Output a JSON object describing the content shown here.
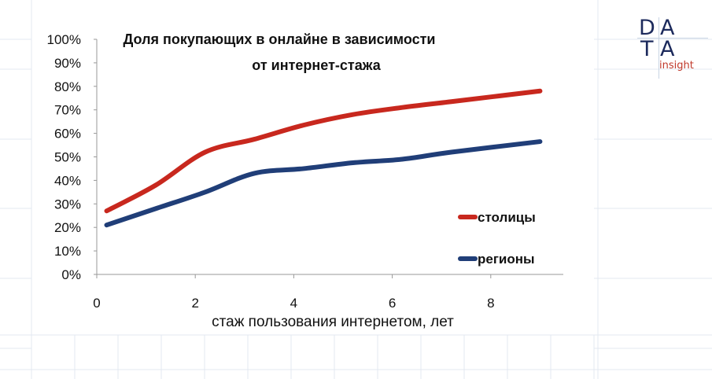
{
  "logo": {
    "text": "DATA insight",
    "line1": [
      "D",
      "A"
    ],
    "line2": [
      "T",
      "A"
    ],
    "sub": "insight"
  },
  "chart_data": {
    "type": "line",
    "title": [
      "Доля покупающих в онлайне в зависимости",
      "от интернет-стажа"
    ],
    "xlabel": "стаж пользования интернетом, лет",
    "ylabel": "",
    "xlim": [
      0,
      9.6
    ],
    "ylim": [
      0,
      100
    ],
    "xticks": [
      "0",
      "2",
      "4",
      "6",
      "8"
    ],
    "xtick_values": [
      0,
      2,
      4,
      6,
      8
    ],
    "yticks": [
      "0%",
      "10%",
      "20%",
      "30%",
      "40%",
      "50%",
      "60%",
      "70%",
      "80%",
      "90%",
      "100%"
    ],
    "grid": false,
    "legend_position": "right",
    "series": [
      {
        "name": "столицы",
        "color": "#c8281e",
        "x": [
          0.2,
          1.2,
          2.2,
          3.2,
          4.2,
          5.2,
          6.2,
          7.2,
          9.0
        ],
        "y": [
          27,
          38,
          52,
          57.5,
          63.5,
          68,
          71,
          73.5,
          78
        ]
      },
      {
        "name": "регионы",
        "color": "#203e78",
        "x": [
          0.2,
          1.2,
          2.2,
          3.2,
          4.2,
          5.2,
          6.2,
          7.2,
          9.0
        ],
        "y": [
          21,
          28,
          35,
          43,
          45,
          47.5,
          49,
          52,
          56.5
        ]
      }
    ]
  }
}
